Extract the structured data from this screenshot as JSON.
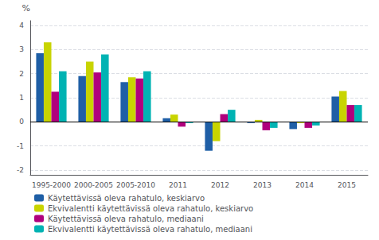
{
  "chart_data": {
    "type": "bar",
    "categories": [
      "1995-2000",
      "2000-2005",
      "2005-2010",
      "2011",
      "2012",
      "2013",
      "2014",
      "2015"
    ],
    "series": [
      {
        "name": "Käytettävissä oleva rahatulo, keskiarvo",
        "color": "#1f5fa6",
        "values": [
          2.85,
          1.9,
          1.65,
          0.15,
          -1.2,
          -0.05,
          -0.3,
          1.05
        ]
      },
      {
        "name": "Ekvivalentti käytettävissä oleva rahatulo, keskiarvo",
        "color": "#c8d400",
        "values": [
          3.3,
          2.5,
          1.85,
          0.3,
          -0.8,
          0.08,
          -0.05,
          1.28
        ]
      },
      {
        "name": "Käytettävissä oleva rahatulo, mediaani",
        "color": "#b0007d",
        "values": [
          1.25,
          2.05,
          1.8,
          -0.2,
          0.32,
          -0.35,
          -0.25,
          0.7
        ]
      },
      {
        "name": "Ekvivalentti käytettävissä oleva rahatulo, mediaani",
        "color": "#00b3b3",
        "values": [
          2.1,
          2.8,
          2.1,
          -0.05,
          0.5,
          -0.25,
          -0.15,
          0.7
        ]
      }
    ],
    "y_label": "%",
    "ylim": [
      -2.2,
      4.2
    ],
    "yticks": [
      -2,
      -1,
      0,
      1,
      2,
      3,
      4
    ],
    "grid": true,
    "legend": "lower left"
  }
}
